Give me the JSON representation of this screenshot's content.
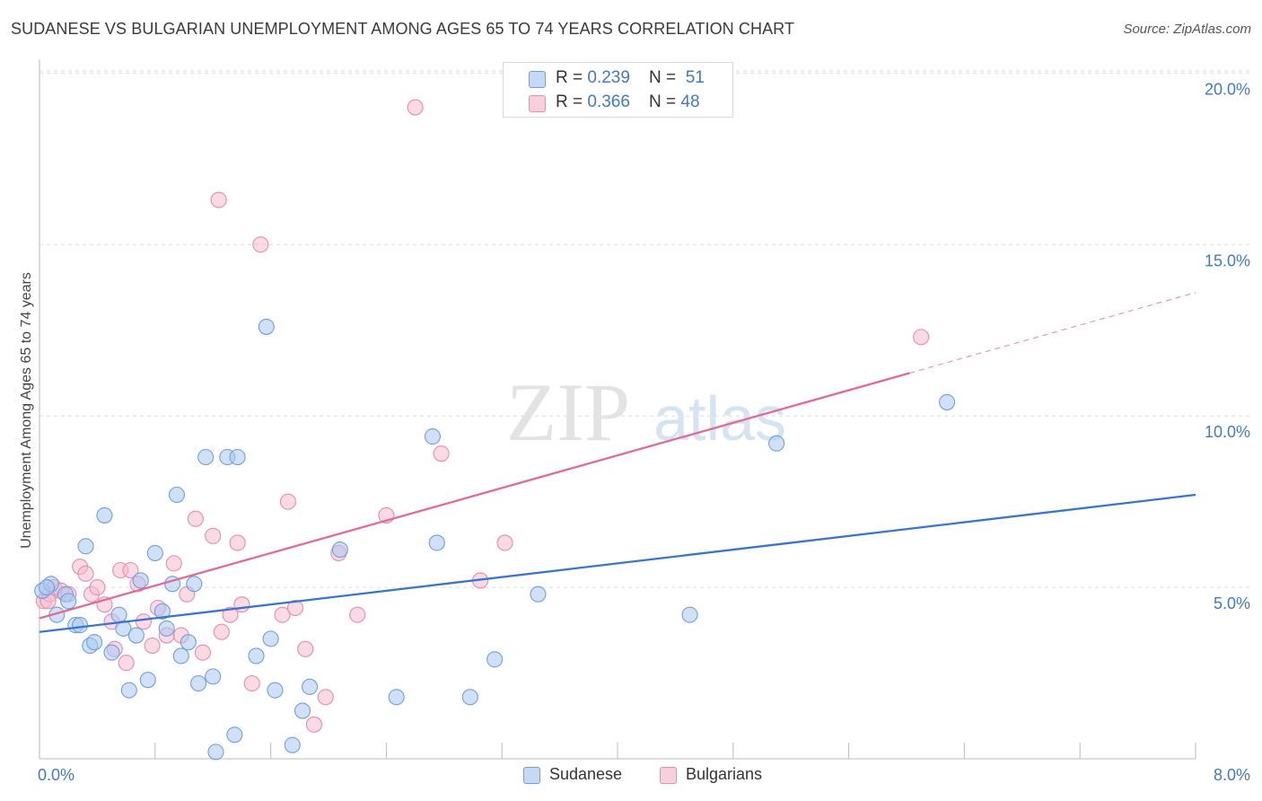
{
  "title": "SUDANESE VS BULGARIAN UNEMPLOYMENT AMONG AGES 65 TO 74 YEARS CORRELATION CHART",
  "source": "Source: ZipAtlas.com",
  "watermark": {
    "zip": "ZIP",
    "atlas": "atlas"
  },
  "colors": {
    "sudanese_fill": "#aac8f0",
    "sudanese_stroke": "#6f9fdc",
    "sudanese_line": "#3a74cc",
    "bulgarians_fill": "#f6bccf",
    "bulgarians_stroke": "#e98cab",
    "bulgarians_line": "#e06b96",
    "axis_label": "#4178c8",
    "grid": "#dddddd"
  },
  "legend": {
    "rows": [
      {
        "r_label": "R = ",
        "r_value": "0.239",
        "n_label": "N = ",
        "n_value": "51"
      },
      {
        "r_label": "R = ",
        "r_value": "0.366",
        "n_label": "N = ",
        "n_value": "48"
      }
    ]
  },
  "bottom_legend": {
    "sudanese": "Sudanese",
    "bulgarians": "Bulgarians"
  },
  "chart_data": {
    "type": "scatter",
    "title": "SUDANESE VS BULGARIAN UNEMPLOYMENT AMONG AGES 65 TO 74 YEARS CORRELATION CHART",
    "xlabel": "",
    "ylabel": "Unemployment Among Ages 65 to 74 years",
    "xlim": [
      0,
      8
    ],
    "ylim": [
      0,
      20
    ],
    "x_tick_labels": [
      "0.0%",
      "8.0%"
    ],
    "y_ticks": [
      5,
      10,
      15,
      20
    ],
    "y_tick_labels": [
      "5.0%",
      "10.0%",
      "15.0%",
      "20.0%"
    ],
    "grid": true,
    "series": [
      {
        "name": "Sudanese",
        "r": 0.239,
        "n": 51,
        "trend": {
          "x0": 0,
          "y0": 3.7,
          "x1": 8,
          "y1": 7.7,
          "solid_to": 8
        },
        "points": [
          [
            0.02,
            4.9
          ],
          [
            0.08,
            5.1
          ],
          [
            0.12,
            4.2
          ],
          [
            0.18,
            4.8
          ],
          [
            0.2,
            4.6
          ],
          [
            0.25,
            3.9
          ],
          [
            0.28,
            3.9
          ],
          [
            0.32,
            6.2
          ],
          [
            0.35,
            3.3
          ],
          [
            0.38,
            3.4
          ],
          [
            0.45,
            7.1
          ],
          [
            0.5,
            3.1
          ],
          [
            0.55,
            4.2
          ],
          [
            0.58,
            3.8
          ],
          [
            0.62,
            2.0
          ],
          [
            0.67,
            3.6
          ],
          [
            0.7,
            5.2
          ],
          [
            0.75,
            2.3
          ],
          [
            0.8,
            6.0
          ],
          [
            0.85,
            4.3
          ],
          [
            0.88,
            3.8
          ],
          [
            0.92,
            5.1
          ],
          [
            0.95,
            7.7
          ],
          [
            0.98,
            3.0
          ],
          [
            1.03,
            3.4
          ],
          [
            1.07,
            5.1
          ],
          [
            1.1,
            2.2
          ],
          [
            1.15,
            8.8
          ],
          [
            1.2,
            2.4
          ],
          [
            1.22,
            0.2
          ],
          [
            1.3,
            8.8
          ],
          [
            1.35,
            0.7
          ],
          [
            1.37,
            8.8
          ],
          [
            1.5,
            3.0
          ],
          [
            1.57,
            12.6
          ],
          [
            1.6,
            3.5
          ],
          [
            1.63,
            2.0
          ],
          [
            1.75,
            0.4
          ],
          [
            1.82,
            1.4
          ],
          [
            1.87,
            2.1
          ],
          [
            2.08,
            6.1
          ],
          [
            2.47,
            1.8
          ],
          [
            2.72,
            9.4
          ],
          [
            2.75,
            6.3
          ],
          [
            2.98,
            1.8
          ],
          [
            3.15,
            2.9
          ],
          [
            3.45,
            4.8
          ],
          [
            4.5,
            4.2
          ],
          [
            5.1,
            9.2
          ],
          [
            6.28,
            10.4
          ],
          [
            0.05,
            5.0
          ]
        ]
      },
      {
        "name": "Bulgarians",
        "r": 0.366,
        "n": 48,
        "trend": {
          "x0": 0,
          "y0": 4.1,
          "x1": 8,
          "y1": 13.6,
          "solid_to": 6.02
        },
        "points": [
          [
            0.03,
            4.6
          ],
          [
            0.07,
            4.8
          ],
          [
            0.1,
            5.0
          ],
          [
            0.15,
            4.9
          ],
          [
            0.2,
            4.8
          ],
          [
            0.28,
            5.6
          ],
          [
            0.32,
            5.4
          ],
          [
            0.36,
            4.8
          ],
          [
            0.4,
            5.0
          ],
          [
            0.45,
            4.5
          ],
          [
            0.5,
            4.0
          ],
          [
            0.52,
            3.2
          ],
          [
            0.56,
            5.5
          ],
          [
            0.6,
            2.8
          ],
          [
            0.63,
            5.5
          ],
          [
            0.68,
            5.1
          ],
          [
            0.72,
            4.0
          ],
          [
            0.78,
            3.3
          ],
          [
            0.82,
            4.4
          ],
          [
            0.88,
            3.6
          ],
          [
            0.93,
            5.7
          ],
          [
            0.98,
            3.6
          ],
          [
            1.02,
            4.8
          ],
          [
            1.08,
            7.0
          ],
          [
            1.13,
            3.1
          ],
          [
            1.2,
            6.5
          ],
          [
            1.26,
            3.7
          ],
          [
            1.32,
            4.2
          ],
          [
            1.37,
            6.3
          ],
          [
            1.4,
            4.5
          ],
          [
            1.47,
            2.2
          ],
          [
            1.53,
            15.0
          ],
          [
            1.68,
            4.2
          ],
          [
            1.72,
            7.5
          ],
          [
            1.77,
            4.4
          ],
          [
            1.84,
            3.2
          ],
          [
            1.9,
            1.0
          ],
          [
            1.98,
            1.8
          ],
          [
            2.07,
            6.0
          ],
          [
            2.2,
            4.2
          ],
          [
            2.4,
            7.1
          ],
          [
            2.6,
            19.0
          ],
          [
            2.78,
            8.9
          ],
          [
            3.05,
            5.2
          ],
          [
            3.22,
            6.3
          ],
          [
            6.1,
            12.3
          ],
          [
            1.24,
            16.3
          ],
          [
            0.06,
            4.6
          ]
        ]
      }
    ]
  }
}
